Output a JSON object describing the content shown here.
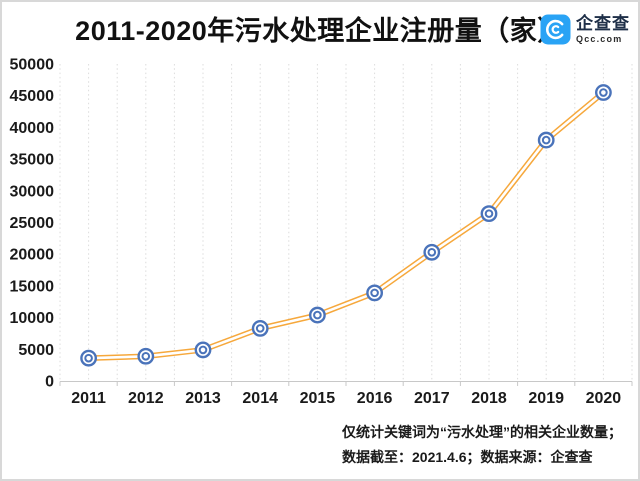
{
  "header": {
    "logo": {
      "name": "企查查",
      "domain": "Qcc.com",
      "icon": "qcc-spiral-c-icon",
      "icon_color": "#29A3F5"
    }
  },
  "chart_data": {
    "type": "line",
    "title": "2011-2020年污水处理企业注册量（家）",
    "categories": [
      "2011",
      "2012",
      "2013",
      "2014",
      "2015",
      "2016",
      "2017",
      "2018",
      "2019",
      "2020"
    ],
    "series": [
      {
        "name": "污水处理企业注册量",
        "values": [
          3600,
          3900,
          4900,
          8300,
          10400,
          13900,
          20300,
          26400,
          38000,
          45500
        ]
      }
    ],
    "xlabel": "",
    "ylabel": "",
    "ylim": [
      0,
      50000
    ],
    "ytick_step": 5000,
    "y_ticks": [
      "0",
      "5000",
      "10000",
      "15000",
      "20000",
      "25000",
      "30000",
      "35000",
      "40000",
      "45000",
      "50000"
    ],
    "grid": "vertical dotted minor gridlines only, no horizontal gridlines",
    "legend_position": "none",
    "line_color": "#F6A83C",
    "line_style": "double-stroke",
    "marker": "double-ring-circle",
    "marker_color": "#4A73BA",
    "axis_color": "#c8c8c8",
    "text_color": "#1a1a1a"
  },
  "footnote": {
    "line1": "仅统计关键词为“污水处理”的相关企业数量；",
    "line2": "数据截至：2021.4.6；数据来源：企查查"
  }
}
